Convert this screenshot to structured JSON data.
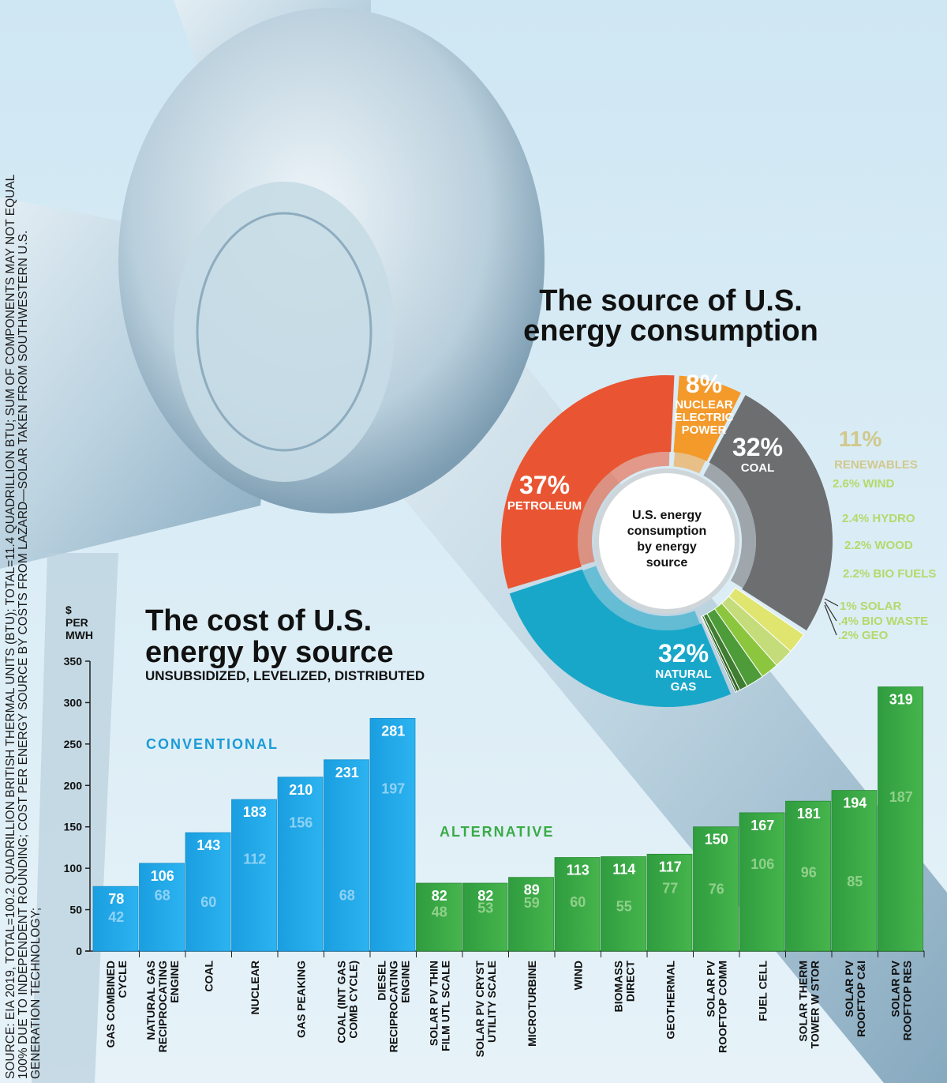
{
  "source_note": "SOURCE: EIA 2019, TOTAL=100.2 QUADRILLION BRITISH THERMAL UNITS (BTU); TOTAL=11.4 QUADRILLION BTU; SUM OF COMPONENTS MAY NOT EQUAL 100% DUE TO INDEPENDENT ROUNDING; COST PER ENERGY SOURCE BY COSTS FROM LAZARD—SOLAR TAKEN FROM SOUTHWESTERN U.S. GENERATION TECHNOLOGY;",
  "colors": {
    "petroleum": "#e95532",
    "nuclear": "#f39a2b",
    "coal": "#6d6e70",
    "natural_gas": "#19a7c9",
    "conventional_bar": "#1eaaea",
    "alternative_bar": "#3aab47",
    "conventional_label": "#1a9bd7",
    "alternative_label": "#3aab47",
    "renewables_label": "#d1c88d"
  },
  "chart_data": [
    {
      "type": "pie",
      "title_line1": "The source of U.S.",
      "title_line2": "energy consumption",
      "center_label": [
        "U.S. energy",
        "consumption",
        "by energy",
        "source"
      ],
      "slices": [
        {
          "name": "PETROLEUM",
          "value": 37,
          "label": "37%"
        },
        {
          "name": "NUCLEAR ELECTRIC POWER",
          "value": 8,
          "label": "8%"
        },
        {
          "name": "COAL",
          "value": 32,
          "label": "32%"
        },
        {
          "name": "RENEWABLES",
          "value": 11,
          "label": "11%"
        },
        {
          "name": "NATURAL GAS",
          "value": 32,
          "label": "32%"
        }
      ],
      "renewables_breakdown": [
        {
          "name": "WIND",
          "value": 2.6,
          "label": "2.6% WIND",
          "color": "#dfe56f"
        },
        {
          "name": "HYDRO",
          "value": 2.4,
          "label": "2.4% HYDRO",
          "color": "#c4dc79"
        },
        {
          "name": "WOOD",
          "value": 2.2,
          "label": "2.2% WOOD",
          "color": "#8cc63f"
        },
        {
          "name": "BIO FUELS",
          "value": 2.2,
          "label": "2.2% BIO FUELS",
          "color": "#4e9b3a"
        },
        {
          "name": "SOLAR",
          "value": 1,
          "label": "1% SOLAR",
          "color": "#3f7d30"
        },
        {
          "name": "BIO WASTE",
          "value": 0.4,
          "label": ".4% BIO WASTE",
          "color": "#2f6626"
        },
        {
          "name": "GEO",
          "value": 0.2,
          "label": ".2% GEO",
          "color": "#1f4f1c"
        }
      ]
    },
    {
      "type": "bar",
      "title_line1": "The cost of U.S.",
      "title_line2": "energy by source",
      "subtitle": "UNSUBSIDIZED, LEVELIZED, DISTRIBUTED",
      "ylabel": [
        "$",
        "PER",
        "MWH"
      ],
      "ylim": [
        0,
        350
      ],
      "yticks": [
        0,
        50,
        100,
        150,
        200,
        250,
        300,
        350
      ],
      "group_labels": {
        "conventional": "CONVENTIONAL",
        "alternative": "ALTERNATIVE"
      },
      "categories": [
        {
          "label": [
            "GAS COMBINED",
            "CYCLE"
          ],
          "group": "conventional",
          "high": 78,
          "low": 42
        },
        {
          "label": [
            "NATURAL GAS",
            "RECIPROCATING",
            "ENGINE"
          ],
          "group": "conventional",
          "high": 106,
          "low": 68
        },
        {
          "label": [
            "COAL"
          ],
          "group": "conventional",
          "high": 143,
          "low": 60
        },
        {
          "label": [
            "NUCLEAR"
          ],
          "group": "conventional",
          "high": 183,
          "low": 112
        },
        {
          "label": [
            "GAS PEAKING"
          ],
          "group": "conventional",
          "high": 210,
          "low": 156
        },
        {
          "label": [
            "COAL (INT GAS",
            "COMB CYCLE)"
          ],
          "group": "conventional",
          "high": 231,
          "low": 68
        },
        {
          "label": [
            "DIESEL",
            "RECIPROCATING",
            "ENGINE"
          ],
          "group": "conventional",
          "high": 281,
          "low": 197
        },
        {
          "label": [
            "SOLAR PV THIN",
            "FILM UTL SCALE"
          ],
          "group": "alternative",
          "high": 82,
          "low": 48
        },
        {
          "label": [
            "SOLAR PV CRYST",
            "UTILITY SCALE"
          ],
          "group": "alternative",
          "high": 82,
          "low": 53
        },
        {
          "label": [
            "MICROTURBINE"
          ],
          "group": "alternative",
          "high": 89,
          "low": 59
        },
        {
          "label": [
            "WIND"
          ],
          "group": "alternative",
          "high": 113,
          "low": 60
        },
        {
          "label": [
            "BIOMASS",
            "DIRECT"
          ],
          "group": "alternative",
          "high": 114,
          "low": 55
        },
        {
          "label": [
            "GEOTHERMAL"
          ],
          "group": "alternative",
          "high": 117,
          "low": 77
        },
        {
          "label": [
            "SOLAR PV",
            "ROOFTOP COMM"
          ],
          "group": "alternative",
          "high": 150,
          "low": 76
        },
        {
          "label": [
            "FUEL CELL"
          ],
          "group": "alternative",
          "high": 167,
          "low": 106
        },
        {
          "label": [
            "SOLAR THERM",
            "TOWER W STOR"
          ],
          "group": "alternative",
          "high": 181,
          "low": 96
        },
        {
          "label": [
            "SOLAR PV",
            "ROOFTOP C&I"
          ],
          "group": "alternative",
          "high": 194,
          "low": 85
        },
        {
          "label": [
            "SOLAR PV",
            "ROOFTOP RES"
          ],
          "group": "alternative",
          "high": 319,
          "low": 187
        }
      ]
    }
  ]
}
